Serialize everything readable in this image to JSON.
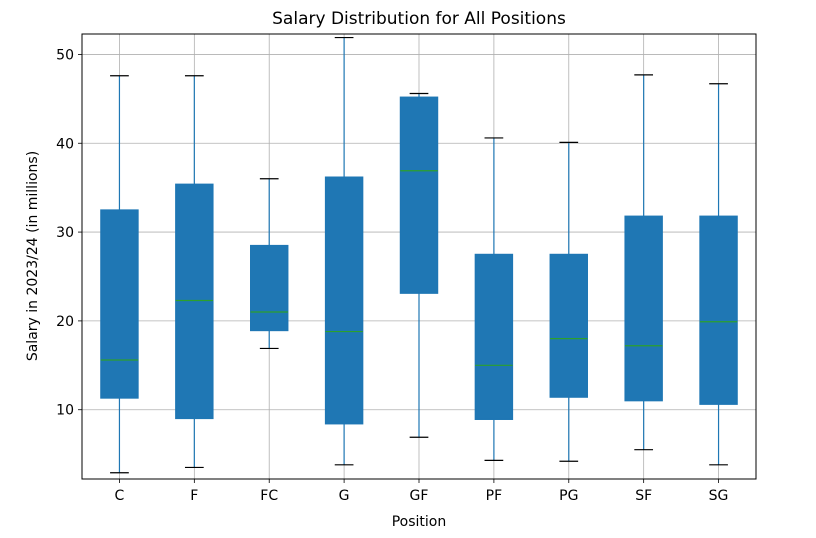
{
  "chart_data": {
    "type": "box",
    "title": "Salary Distribution for All Positions",
    "xlabel": "Position",
    "ylabel": "Salary in 2023/24 (in millions)",
    "ylim": [
      2.2,
      52.3
    ],
    "yticks": [
      10,
      20,
      30,
      40,
      50
    ],
    "grid": true,
    "box_color": "#1f77b4",
    "median_color": "#2ca02c",
    "categories": [
      "C",
      "F",
      "FC",
      "G",
      "GF",
      "PF",
      "PG",
      "SF",
      "SG"
    ],
    "boxes": [
      {
        "category": "C",
        "min": 2.9,
        "q1": 11.3,
        "median": 15.6,
        "q3": 32.5,
        "max": 47.6
      },
      {
        "category": "F",
        "min": 3.5,
        "q1": 9.0,
        "median": 22.3,
        "q3": 35.4,
        "max": 47.6
      },
      {
        "category": "FC",
        "min": 16.9,
        "q1": 18.9,
        "median": 21.0,
        "q3": 28.5,
        "max": 36.0
      },
      {
        "category": "G",
        "min": 3.8,
        "q1": 8.4,
        "median": 18.8,
        "q3": 36.2,
        "max": 51.9
      },
      {
        "category": "GF",
        "min": 6.9,
        "q1": 23.1,
        "median": 36.9,
        "q3": 45.2,
        "max": 45.6
      },
      {
        "category": "PF",
        "min": 4.3,
        "q1": 8.9,
        "median": 15.0,
        "q3": 27.5,
        "max": 40.6
      },
      {
        "category": "PG",
        "min": 4.2,
        "q1": 11.4,
        "median": 18.0,
        "q3": 27.5,
        "max": 40.1
      },
      {
        "category": "SF",
        "min": 5.5,
        "q1": 11.0,
        "median": 17.2,
        "q3": 31.8,
        "max": 47.7
      },
      {
        "category": "SG",
        "min": 3.8,
        "q1": 10.6,
        "median": 19.9,
        "q3": 31.8,
        "max": 46.7
      }
    ]
  }
}
